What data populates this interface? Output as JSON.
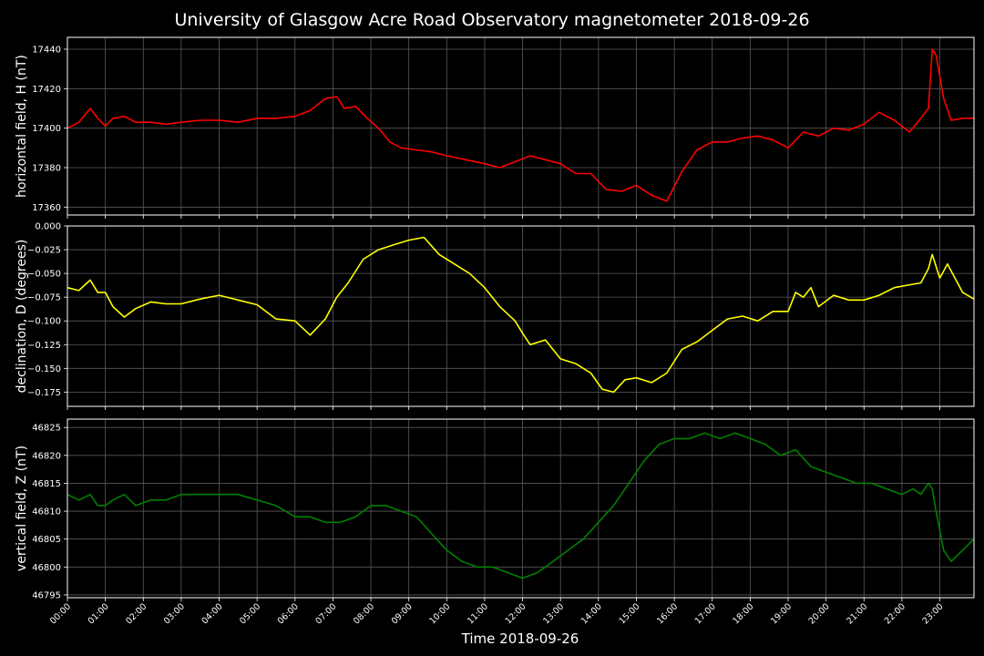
{
  "title": "University of Glasgow Acre Road Observatory magnetometer 2018-09-26",
  "xlabel": "Time 2018-09-26",
  "chart_data": [
    {
      "type": "line",
      "ylabel": "horizontal field, H (nT)",
      "color": "#ff0000",
      "ylim": [
        17356,
        17446
      ],
      "yticks": [
        17360,
        17380,
        17400,
        17420,
        17440
      ],
      "x_hours": [
        0,
        0.3,
        0.6,
        0.8,
        1.0,
        1.2,
        1.5,
        1.8,
        2.2,
        2.6,
        3.0,
        3.5,
        4.0,
        4.5,
        5.0,
        5.5,
        6.0,
        6.4,
        6.8,
        7.1,
        7.3,
        7.6,
        7.9,
        8.2,
        8.5,
        8.8,
        9.2,
        9.6,
        10.0,
        10.5,
        11.0,
        11.4,
        11.8,
        12.2,
        12.6,
        13.0,
        13.4,
        13.8,
        14.2,
        14.6,
        15.0,
        15.4,
        15.8,
        16.2,
        16.6,
        17.0,
        17.4,
        17.8,
        18.2,
        18.6,
        19.0,
        19.4,
        19.8,
        20.2,
        20.6,
        21.0,
        21.4,
        21.8,
        22.2,
        22.5,
        22.7,
        22.8,
        22.9,
        23.1,
        23.3,
        23.6,
        23.9
      ],
      "values": [
        17400,
        17403,
        17410,
        17405,
        17401,
        17405,
        17406,
        17403,
        17403,
        17402,
        17403,
        17404,
        17404,
        17403,
        17405,
        17405,
        17406,
        17409,
        17415,
        17416,
        17410,
        17411,
        17405,
        17400,
        17393,
        17390,
        17389,
        17388,
        17386,
        17384,
        17382,
        17380,
        17383,
        17386,
        17384,
        17382,
        17377,
        17377,
        17369,
        17368,
        17371,
        17366,
        17363,
        17378,
        17389,
        17393,
        17393,
        17395,
        17396,
        17394,
        17390,
        17398,
        17396,
        17400,
        17399,
        17402,
        17408,
        17404,
        17398,
        17405,
        17410,
        17440,
        17437,
        17415,
        17404,
        17405,
        17405
      ]
    },
    {
      "type": "line",
      "ylabel": "declination, D (degrees)",
      "color": "#ffff00",
      "ylim": [
        -0.19,
        0.0
      ],
      "yticks": [
        0.0,
        -0.025,
        -0.05,
        -0.075,
        -0.1,
        -0.125,
        -0.15,
        -0.175
      ],
      "ytick_labels": [
        "0.000",
        "−0.025",
        "−0.050",
        "−0.075",
        "−0.100",
        "−0.125",
        "−0.150",
        "−0.175"
      ],
      "x_hours": [
        0,
        0.3,
        0.6,
        0.8,
        1.0,
        1.2,
        1.5,
        1.8,
        2.2,
        2.6,
        3.0,
        3.5,
        4.0,
        4.5,
        5.0,
        5.5,
        6.0,
        6.4,
        6.8,
        7.1,
        7.4,
        7.8,
        8.2,
        8.6,
        9.0,
        9.4,
        9.8,
        10.2,
        10.6,
        11.0,
        11.4,
        11.8,
        12.0,
        12.2,
        12.6,
        13.0,
        13.4,
        13.8,
        14.1,
        14.4,
        14.7,
        15.0,
        15.4,
        15.8,
        16.2,
        16.6,
        17.0,
        17.4,
        17.8,
        18.2,
        18.6,
        19.0,
        19.2,
        19.4,
        19.6,
        19.8,
        20.2,
        20.6,
        21.0,
        21.4,
        21.8,
        22.2,
        22.5,
        22.7,
        22.8,
        23.0,
        23.2,
        23.6,
        23.9
      ],
      "values": [
        -0.065,
        -0.068,
        -0.057,
        -0.07,
        -0.07,
        -0.085,
        -0.096,
        -0.087,
        -0.08,
        -0.082,
        -0.082,
        -0.077,
        -0.073,
        -0.078,
        -0.083,
        -0.098,
        -0.1,
        -0.115,
        -0.098,
        -0.075,
        -0.06,
        -0.035,
        -0.025,
        -0.02,
        -0.015,
        -0.012,
        -0.03,
        -0.04,
        -0.05,
        -0.065,
        -0.085,
        -0.1,
        -0.113,
        -0.125,
        -0.12,
        -0.14,
        -0.145,
        -0.155,
        -0.172,
        -0.175,
        -0.162,
        -0.16,
        -0.165,
        -0.155,
        -0.13,
        -0.122,
        -0.11,
        -0.098,
        -0.095,
        -0.1,
        -0.09,
        -0.09,
        -0.07,
        -0.075,
        -0.065,
        -0.085,
        -0.073,
        -0.078,
        -0.078,
        -0.073,
        -0.065,
        -0.062,
        -0.06,
        -0.045,
        -0.03,
        -0.055,
        -0.04,
        -0.07,
        -0.077
      ]
    },
    {
      "type": "line",
      "ylabel": "vertical field, Z (nT)",
      "color": "#008000",
      "ylim": [
        46794.5,
        46826.5
      ],
      "yticks": [
        46795,
        46800,
        46805,
        46810,
        46815,
        46820,
        46825
      ],
      "x_hours": [
        0,
        0.3,
        0.6,
        0.8,
        1.0,
        1.2,
        1.5,
        1.8,
        2.2,
        2.6,
        3.0,
        3.5,
        4.0,
        4.5,
        5.0,
        5.5,
        6.0,
        6.4,
        6.8,
        7.2,
        7.6,
        8.0,
        8.4,
        8.8,
        9.2,
        9.6,
        10.0,
        10.4,
        10.8,
        11.2,
        11.6,
        12.0,
        12.4,
        12.8,
        13.2,
        13.6,
        14.0,
        14.4,
        14.8,
        15.2,
        15.6,
        16.0,
        16.4,
        16.8,
        17.2,
        17.6,
        18.0,
        18.4,
        18.8,
        19.2,
        19.6,
        20.0,
        20.4,
        20.8,
        21.2,
        21.6,
        22.0,
        22.3,
        22.5,
        22.7,
        22.8,
        22.9,
        23.1,
        23.3,
        23.6,
        23.9
      ],
      "values": [
        46813,
        46812,
        46813,
        46811,
        46811,
        46812,
        46813,
        46811,
        46812,
        46812,
        46813,
        46813,
        46813,
        46813,
        46812,
        46811,
        46809,
        46809,
        46808,
        46808,
        46809,
        46811,
        46811,
        46810,
        46809,
        46806,
        46803,
        46801,
        46800,
        46800,
        46799,
        46798,
        46799,
        46801,
        46803,
        46805,
        46808,
        46811,
        46815,
        46819,
        46822,
        46823,
        46823,
        46824,
        46823,
        46824,
        46823,
        46822,
        46820,
        46821,
        46818,
        46817,
        46816,
        46815,
        46815,
        46814,
        46813,
        46814,
        46813,
        46815,
        46814,
        46810,
        46803,
        46801,
        46803,
        46805
      ]
    }
  ],
  "xticks": [
    "00:00",
    "01:00",
    "02:00",
    "03:00",
    "04:00",
    "05:00",
    "06:00",
    "07:00",
    "08:00",
    "09:00",
    "10:00",
    "11:00",
    "12:00",
    "13:00",
    "14:00",
    "15:00",
    "16:00",
    "17:00",
    "18:00",
    "19:00",
    "20:00",
    "21:00",
    "22:00",
    "23:00"
  ]
}
